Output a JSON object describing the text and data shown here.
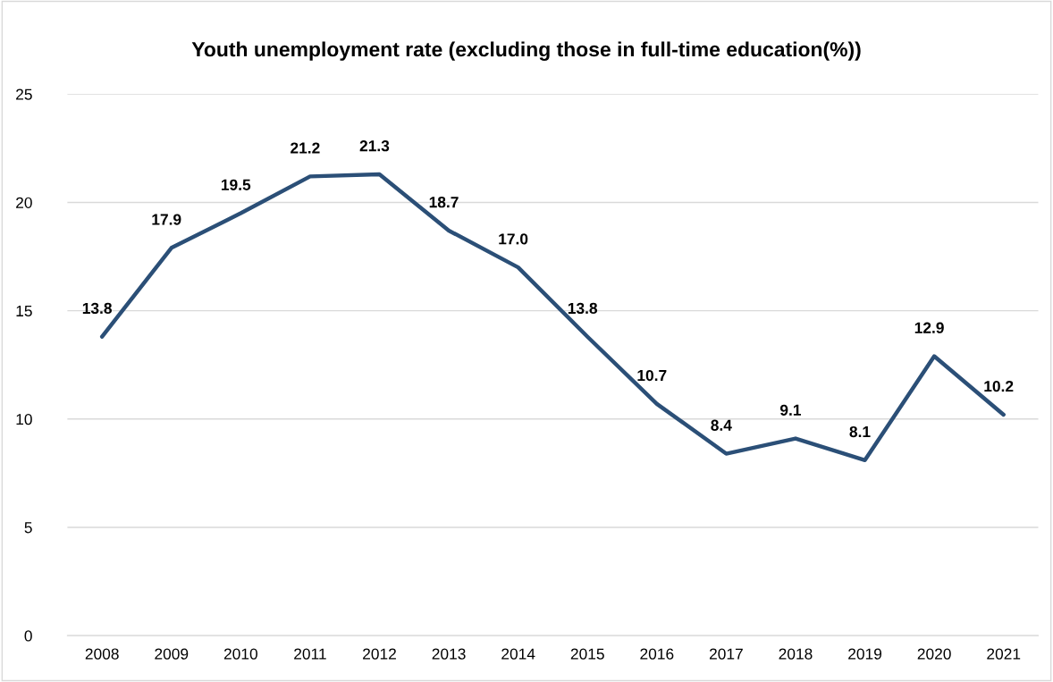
{
  "chart_data": {
    "type": "line",
    "title": "Youth unemployment rate (excluding those in full-time education(%))",
    "categories": [
      "2008",
      "2009",
      "2010",
      "2011",
      "2012",
      "2013",
      "2014",
      "2015",
      "2016",
      "2017",
      "2018",
      "2019",
      "2020",
      "2021"
    ],
    "series": [
      {
        "color": "#2b4f77",
        "values": [
          13.8,
          17.9,
          19.5,
          21.2,
          21.3,
          18.7,
          17.0,
          13.8,
          10.7,
          8.4,
          9.1,
          8.1,
          12.9,
          10.2
        ]
      }
    ],
    "value_labels": [
      "13.8",
      "17.9",
      "19.5",
      "21.2",
      "21.3",
      "18.7",
      "17.0",
      "13.8",
      "10.7",
      "8.4",
      "9.1",
      "8.1",
      "12.9",
      "10.2"
    ],
    "ylim": [
      0,
      25
    ],
    "yticks": [
      0,
      5,
      10,
      15,
      20,
      25
    ],
    "grid": "y",
    "marker": "none",
    "line_style": "solid"
  }
}
